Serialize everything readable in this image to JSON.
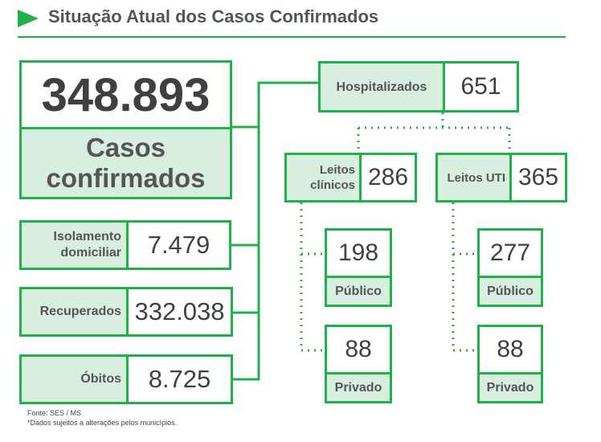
{
  "header": {
    "title": "Situação Atual dos Casos Confirmados"
  },
  "confirmed": {
    "value": "348.893",
    "label": "Casos confirmados"
  },
  "isolation": {
    "label": "Isolamento domiciliar",
    "value": "7.479"
  },
  "recovered": {
    "label": "Recuperados",
    "value": "332.038"
  },
  "deaths": {
    "label": "Óbitos",
    "value": "8.725"
  },
  "hospitalized": {
    "label": "Hospitalizados",
    "value": "651"
  },
  "clinical_beds": {
    "label": "Leitos clínicos",
    "value": "286",
    "public": {
      "value": "198",
      "label": "Público"
    },
    "private": {
      "value": "88",
      "label": "Privado"
    }
  },
  "icu_beds": {
    "label": "Leitos UTI",
    "value": "365",
    "public": {
      "value": "277",
      "label": "Público"
    },
    "private": {
      "value": "88",
      "label": "Privado"
    }
  },
  "footer": {
    "source": "Fonte: SES / MS",
    "note": "*Dados sujeitos a alterações pelos municípios."
  },
  "colors": {
    "accent": "#22b04b",
    "label_fill": "#d8efdf",
    "text": "#404040"
  }
}
